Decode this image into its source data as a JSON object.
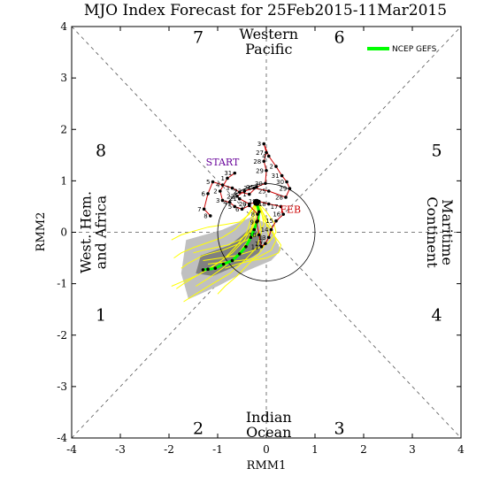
{
  "chart_data": {
    "type": "line",
    "title": "MJO Index Forecast for 25Feb2015-11Mar2015",
    "xlabel": "RMM1",
    "ylabel": "RMM2",
    "xlim": [
      -4,
      4
    ],
    "ylim": [
      -4,
      4
    ],
    "x_ticks": [
      "-4",
      "-3",
      "-2",
      "-1",
      "0",
      "1",
      "2",
      "3",
      "4"
    ],
    "y_ticks": [
      "-4",
      "-3",
      "-2",
      "-1",
      "0",
      "1",
      "2",
      "3",
      "4"
    ],
    "unit_circle_radius": 1,
    "phases": [
      {
        "label": "1",
        "x": -3.4,
        "y": -1.6
      },
      {
        "label": "2",
        "x": -1.4,
        "y": -3.8
      },
      {
        "label": "3",
        "x": 1.5,
        "y": -3.8
      },
      {
        "label": "4",
        "x": 3.5,
        "y": -1.6
      },
      {
        "label": "5",
        "x": 3.5,
        "y": 1.6
      },
      {
        "label": "6",
        "x": 1.5,
        "y": 3.8
      },
      {
        "label": "7",
        "x": -1.4,
        "y": 3.8
      },
      {
        "label": "8",
        "x": -3.4,
        "y": 1.6
      }
    ],
    "regions": [
      {
        "lines": [
          "Western",
          "Pacific"
        ],
        "x": 0.05,
        "y": 3.7,
        "rotate": 0
      },
      {
        "lines": [
          "Indian",
          "Ocean"
        ],
        "x": 0.05,
        "y": -3.75,
        "rotate": 0
      },
      {
        "lines": [
          "West. Hem.",
          "and Africa"
        ],
        "x": -3.55,
        "y": 0,
        "rotate": -90
      },
      {
        "lines": [
          "Maritime",
          "Continent"
        ],
        "x": 3.55,
        "y": 0,
        "rotate": 90
      }
    ],
    "start_label": {
      "text": "START",
      "x": -0.9,
      "y": 1.3
    },
    "month_label": {
      "text": "FEB",
      "x": 0.28,
      "y": 0.38
    },
    "legend": {
      "label": "NCEP GEFS",
      "color": "#00ff00",
      "position": "top-right"
    },
    "colors": {
      "observed": "#cc0000",
      "members": "#ffff00",
      "ensemble_mean": "#00ff00",
      "spread_outer": "#c0c0c0",
      "spread_inner": "#808080",
      "start_label": "#660099"
    },
    "observed": [
      {
        "day": "8",
        "x": -1.15,
        "y": 0.32
      },
      {
        "day": "7",
        "x": -1.28,
        "y": 0.45
      },
      {
        "day": "6",
        "x": -1.2,
        "y": 0.75
      },
      {
        "day": "5",
        "x": -1.1,
        "y": 0.98
      },
      {
        "day": "4",
        "x": -0.9,
        "y": 0.92
      },
      {
        "day": "3",
        "x": -0.7,
        "y": 0.86
      },
      {
        "day": "2",
        "x": -0.55,
        "y": 0.78
      },
      {
        "day": "1",
        "x": -0.35,
        "y": 0.74
      },
      {
        "day": "31",
        "x": -0.2,
        "y": 0.88
      },
      {
        "day": "30",
        "x": -0.02,
        "y": 0.95
      },
      {
        "day": "29",
        "x": 0.0,
        "y": 1.2
      },
      {
        "day": "28",
        "x": -0.05,
        "y": 1.38
      },
      {
        "day": "27",
        "x": 0.0,
        "y": 1.55
      },
      {
        "day": "3",
        "x": -0.05,
        "y": 1.72
      },
      {
        "day": "4",
        "x": 0.05,
        "y": 1.48
      },
      {
        "day": "2",
        "x": 0.2,
        "y": 1.28
      },
      {
        "day": "31",
        "x": 0.32,
        "y": 1.1
      },
      {
        "day": "30",
        "x": 0.42,
        "y": 0.98
      },
      {
        "day": "29",
        "x": 0.48,
        "y": 0.85
      },
      {
        "day": "28",
        "x": 0.4,
        "y": 0.68
      },
      {
        "day": "25",
        "x": 0.05,
        "y": 0.8
      },
      {
        "day": "24",
        "x": -0.25,
        "y": 0.86
      },
      {
        "day": "23",
        "x": -0.45,
        "y": 0.8
      },
      {
        "day": "22",
        "x": -0.6,
        "y": 0.7
      },
      {
        "day": "21",
        "x": -0.55,
        "y": 0.65
      },
      {
        "day": "20",
        "x": -0.35,
        "y": 0.55
      },
      {
        "day": "19",
        "x": -0.15,
        "y": 0.6
      },
      {
        "day": "18",
        "x": 0.05,
        "y": 0.55
      },
      {
        "day": "17",
        "x": 0.3,
        "y": 0.5
      },
      {
        "day": "16",
        "x": 0.35,
        "y": 0.35
      },
      {
        "day": "15",
        "x": 0.2,
        "y": 0.22
      },
      {
        "day": "14",
        "x": 0.1,
        "y": 0.05
      },
      {
        "day": "13",
        "x": 0.05,
        "y": -0.1
      },
      {
        "day": "12",
        "x": -0.02,
        "y": -0.22
      },
      {
        "day": "11",
        "x": -0.1,
        "y": -0.28
      },
      {
        "day": "10",
        "x": -0.15,
        "y": -0.05
      },
      {
        "day": "9",
        "x": -0.2,
        "y": 0.2
      },
      {
        "day": "8",
        "x": -0.18,
        "y": 0.35
      },
      {
        "day": "7",
        "x": -0.35,
        "y": 0.52
      },
      {
        "day": "6",
        "x": -0.5,
        "y": 0.45
      },
      {
        "day": "5",
        "x": -0.65,
        "y": 0.5
      },
      {
        "day": "4",
        "x": -0.75,
        "y": 0.58
      },
      {
        "day": "3",
        "x": -0.9,
        "y": 0.62
      },
      {
        "day": "2",
        "x": -0.95,
        "y": 0.8
      },
      {
        "day": "1",
        "x": -0.8,
        "y": 1.05
      },
      {
        "day": "31",
        "x": -0.65,
        "y": 1.15
      }
    ],
    "ensemble_mean": [
      {
        "x": -0.2,
        "y": 0.58
      },
      {
        "x": -0.15,
        "y": 0.4
      },
      {
        "x": -0.18,
        "y": 0.22
      },
      {
        "x": -0.25,
        "y": 0.05
      },
      {
        "x": -0.32,
        "y": -0.1
      },
      {
        "x": -0.42,
        "y": -0.28
      },
      {
        "x": -0.55,
        "y": -0.42
      },
      {
        "x": -0.7,
        "y": -0.55
      },
      {
        "x": -0.88,
        "y": -0.62
      },
      {
        "x": -1.05,
        "y": -0.7
      },
      {
        "x": -1.2,
        "y": -0.72
      },
      {
        "x": -1.3,
        "y": -0.73
      }
    ],
    "members": [
      [
        [
          -0.2,
          0.6
        ],
        [
          -0.1,
          0.4
        ],
        [
          -0.05,
          0.15
        ],
        [
          -0.2,
          -0.05
        ],
        [
          -0.5,
          -0.2
        ],
        [
          -0.9,
          -0.35
        ],
        [
          -1.3,
          -0.45
        ],
        [
          -1.6,
          -0.6
        ],
        [
          -1.75,
          -0.7
        ]
      ],
      [
        [
          -0.2,
          0.6
        ],
        [
          -0.25,
          0.35
        ],
        [
          -0.3,
          0.1
        ],
        [
          -0.45,
          -0.15
        ],
        [
          -0.7,
          -0.4
        ],
        [
          -1.0,
          -0.6
        ],
        [
          -1.35,
          -0.8
        ],
        [
          -1.7,
          -1.0
        ],
        [
          -1.85,
          -1.1
        ]
      ],
      [
        [
          -0.2,
          0.6
        ],
        [
          -0.15,
          0.3
        ],
        [
          -0.1,
          0.0
        ],
        [
          -0.2,
          -0.3
        ],
        [
          -0.45,
          -0.55
        ],
        [
          -0.75,
          -0.8
        ],
        [
          -1.1,
          -1.0
        ],
        [
          -1.45,
          -1.2
        ],
        [
          -1.7,
          -1.35
        ]
      ],
      [
        [
          -0.2,
          0.6
        ],
        [
          -0.05,
          0.35
        ],
        [
          0.1,
          0.1
        ],
        [
          0.2,
          -0.15
        ],
        [
          0.1,
          -0.35
        ],
        [
          -0.2,
          -0.5
        ],
        [
          -0.55,
          -0.55
        ],
        [
          -0.9,
          -0.58
        ],
        [
          -1.2,
          -0.62
        ]
      ],
      [
        [
          -0.2,
          0.6
        ],
        [
          -0.3,
          0.45
        ],
        [
          -0.45,
          0.25
        ],
        [
          -0.65,
          0.05
        ],
        [
          -0.9,
          -0.1
        ],
        [
          -1.2,
          -0.2
        ],
        [
          -1.5,
          -0.3
        ],
        [
          -1.75,
          -0.4
        ],
        [
          -1.9,
          -0.5
        ]
      ],
      [
        [
          -0.2,
          0.6
        ],
        [
          -0.1,
          0.45
        ],
        [
          0.0,
          0.2
        ],
        [
          0.05,
          -0.1
        ],
        [
          -0.1,
          -0.35
        ],
        [
          -0.35,
          -0.6
        ],
        [
          -0.6,
          -0.85
        ],
        [
          -0.85,
          -1.05
        ],
        [
          -1.0,
          -1.2
        ]
      ],
      [
        [
          -0.2,
          0.6
        ],
        [
          -0.2,
          0.4
        ],
        [
          -0.25,
          0.2
        ],
        [
          -0.35,
          0.0
        ],
        [
          -0.55,
          -0.15
        ],
        [
          -0.8,
          -0.25
        ],
        [
          -1.05,
          -0.3
        ],
        [
          -1.3,
          -0.35
        ],
        [
          -1.5,
          -0.4
        ]
      ],
      [
        [
          -0.2,
          0.6
        ],
        [
          -0.05,
          0.25
        ],
        [
          0.15,
          -0.05
        ],
        [
          0.3,
          -0.25
        ],
        [
          0.25,
          -0.4
        ],
        [
          0.0,
          -0.5
        ],
        [
          -0.3,
          -0.55
        ],
        [
          -0.6,
          -0.62
        ],
        [
          -0.85,
          -0.7
        ]
      ],
      [
        [
          -0.2,
          0.6
        ],
        [
          -0.3,
          0.3
        ],
        [
          -0.4,
          0.0
        ],
        [
          -0.6,
          -0.25
        ],
        [
          -0.85,
          -0.5
        ],
        [
          -1.15,
          -0.7
        ],
        [
          -1.45,
          -0.85
        ],
        [
          -1.7,
          -0.95
        ],
        [
          -1.95,
          -1.05
        ]
      ],
      [
        [
          -0.2,
          0.6
        ],
        [
          -0.15,
          0.45
        ],
        [
          -0.2,
          0.25
        ],
        [
          -0.3,
          0.05
        ],
        [
          -0.4,
          -0.2
        ],
        [
          -0.6,
          -0.45
        ],
        [
          -0.9,
          -0.7
        ],
        [
          -1.2,
          -0.9
        ],
        [
          -1.45,
          -1.05
        ]
      ],
      [
        [
          -0.2,
          0.6
        ],
        [
          0.0,
          0.4
        ],
        [
          0.15,
          0.2
        ],
        [
          0.2,
          0.0
        ],
        [
          0.05,
          -0.2
        ],
        [
          -0.25,
          -0.35
        ],
        [
          -0.6,
          -0.45
        ],
        [
          -0.95,
          -0.5
        ],
        [
          -1.3,
          -0.55
        ]
      ],
      [
        [
          -0.2,
          0.6
        ],
        [
          -0.25,
          0.5
        ],
        [
          -0.35,
          0.35
        ],
        [
          -0.55,
          0.2
        ],
        [
          -0.85,
          0.15
        ],
        [
          -1.2,
          0.1
        ],
        [
          -1.5,
          0.02
        ],
        [
          -1.75,
          -0.05
        ],
        [
          -1.95,
          -0.15
        ]
      ]
    ],
    "spread_outer": [
      [
        -1.65,
        -0.15
      ],
      [
        -0.9,
        0.05
      ],
      [
        -0.3,
        0.3
      ],
      [
        0.05,
        0.15
      ],
      [
        0.3,
        -0.35
      ],
      [
        0.1,
        -0.55
      ],
      [
        -0.4,
        -0.75
      ],
      [
        -1.0,
        -1.05
      ],
      [
        -1.6,
        -1.3
      ],
      [
        -1.75,
        -0.8
      ]
    ],
    "spread_inner": [
      [
        -1.35,
        -0.45
      ],
      [
        -0.75,
        -0.25
      ],
      [
        -0.3,
        0.1
      ],
      [
        -0.05,
        -0.1
      ],
      [
        -0.15,
        -0.4
      ],
      [
        -0.6,
        -0.65
      ],
      [
        -1.1,
        -0.85
      ],
      [
        -1.45,
        -0.8
      ]
    ]
  }
}
